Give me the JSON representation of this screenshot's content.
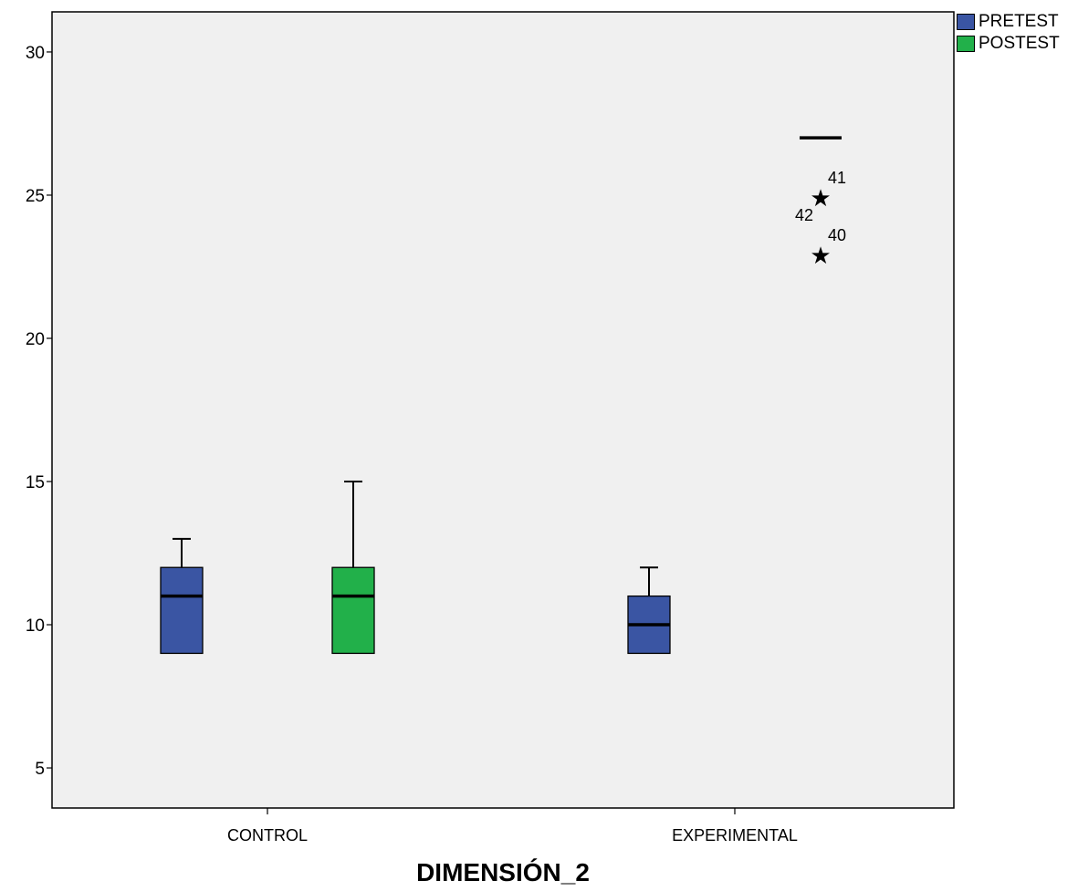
{
  "chart_data": {
    "type": "boxplot",
    "title": "",
    "xlabel": "DIMENSIÓN_2",
    "ylabel": "",
    "ylim": [
      3.6,
      31.4
    ],
    "yticks": [
      5,
      10,
      15,
      20,
      25,
      30
    ],
    "categories": [
      "CONTROL",
      "EXPERIMENTAL"
    ],
    "legend_position": "top-right",
    "grid": false,
    "series": [
      {
        "name": "PRETEST",
        "color": "#3a55a3",
        "boxes": [
          {
            "category": "CONTROL",
            "min": 9,
            "q1": 9,
            "median": 11,
            "q3": 12,
            "max": 13
          },
          {
            "category": "EXPERIMENTAL",
            "min": 9,
            "q1": 9,
            "median": 10,
            "q3": 11,
            "max": 12
          }
        ]
      },
      {
        "name": "POSTEST",
        "color": "#22b04a",
        "boxes": [
          {
            "category": "CONTROL",
            "min": 9,
            "q1": 9,
            "median": 11,
            "q3": 12,
            "max": 15
          },
          {
            "category": "EXPERIMENTAL",
            "min": 27,
            "q1": 27,
            "median": 27,
            "q3": 27,
            "max": 27,
            "outliers": [
              {
                "value": 25,
                "labels": [
                  "41",
                  "42"
                ]
              },
              {
                "value": 23,
                "labels": [
                  "40"
                ]
              }
            ]
          }
        ]
      }
    ]
  }
}
